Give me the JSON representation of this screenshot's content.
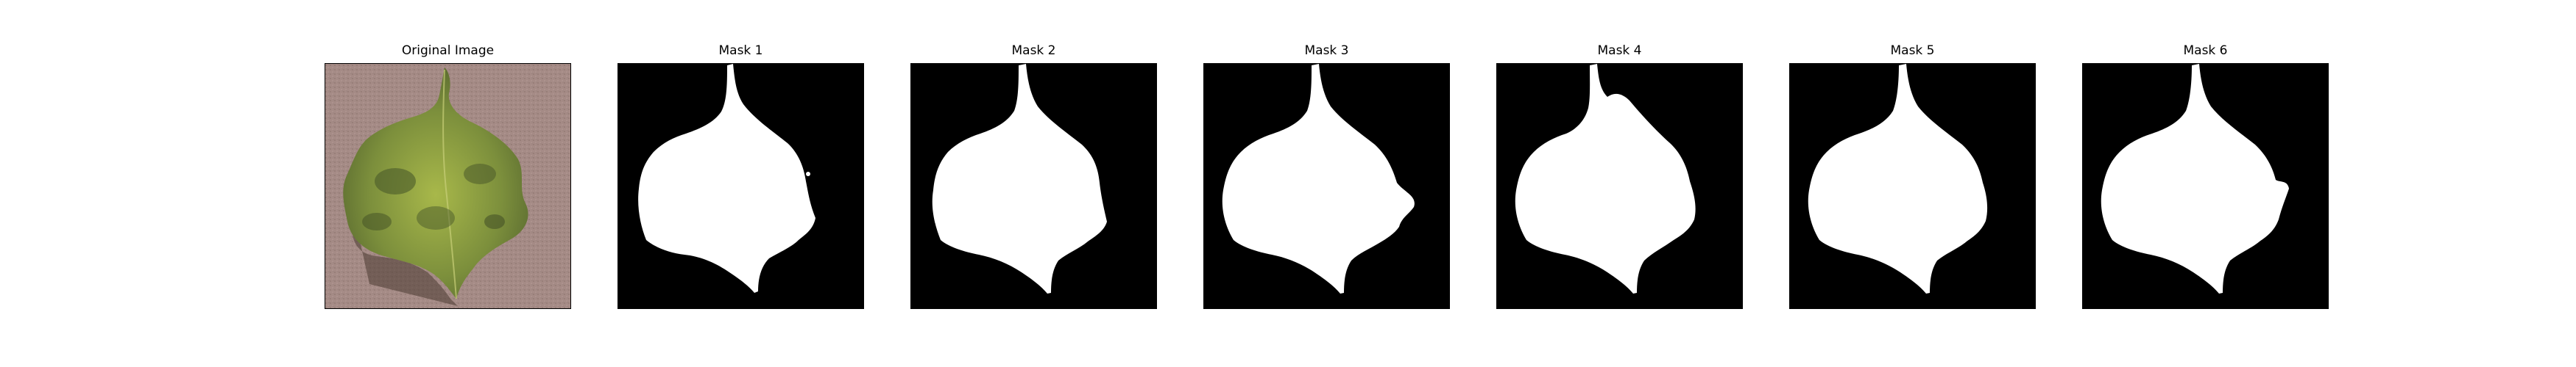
{
  "panels": [
    {
      "title": "Original Image",
      "kind": "photo"
    },
    {
      "title": "Mask 1",
      "kind": "mask"
    },
    {
      "title": "Mask 2",
      "kind": "mask"
    },
    {
      "title": "Mask 3",
      "kind": "mask"
    },
    {
      "title": "Mask 4",
      "kind": "mask"
    },
    {
      "title": "Mask 5",
      "kind": "mask"
    },
    {
      "title": "Mask 6",
      "kind": "mask"
    }
  ],
  "colors": {
    "background": "#ffffff",
    "mask_background": "#000000",
    "mask_foreground": "#ffffff",
    "photo_background": "#a58b86",
    "leaf_light": "#a8b84a",
    "leaf_dark": "#4a5a2a",
    "shadow": "#4a3a32"
  }
}
